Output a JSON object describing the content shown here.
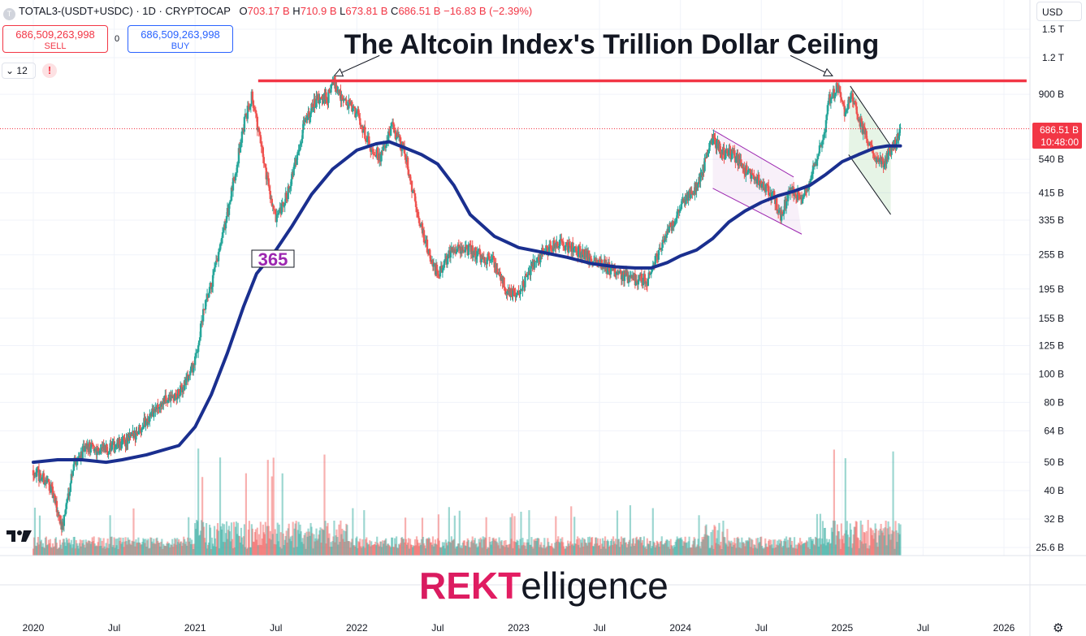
{
  "header": {
    "symbol": "TOTAL3-(USDT+USDC) · 1D · CRYPTOCAP",
    "o_label": "O",
    "o": "703.17 B",
    "h_label": "H",
    "h": "710.9 B",
    "l_label": "L",
    "l": "673.81 B",
    "c_label": "C",
    "c": "686.51 B",
    "change": "−16.83 B (−2.39%)"
  },
  "trade": {
    "sell_price": "686,509,263,998",
    "sell_label": "SELL",
    "spread": "0",
    "buy_price": "686,509,263,998",
    "buy_label": "BUY"
  },
  "indicator_count": "12",
  "warning_glyph": "!",
  "currency": "USD",
  "icons": [
    "symbol-icon",
    "chevron-down-icon",
    "warning-icon",
    "gear-icon",
    "tradingview-logo-icon"
  ],
  "colors": {
    "up": "#26a69a",
    "down": "#ef5350",
    "ma": "#1a2f8f",
    "ceiling": "#f23645",
    "price_tag": "#f23645",
    "channel": "#9c27b0",
    "wedge_fill": "#dff3df",
    "logo_pink": "#e91e63"
  },
  "chart_data": {
    "type": "candlestick",
    "title": "The Altcoin Index's Trillion Dollar Ceiling",
    "watermark": {
      "prefix": "REKT",
      "suffix": "elligence"
    },
    "scale": "log",
    "y_ticks": [
      "1.5 T",
      "1.2 T",
      "900 B",
      "540 B",
      "415 B",
      "335 B",
      "255 B",
      "195 B",
      "155 B",
      "125 B",
      "100 B",
      "80 B",
      "64 B",
      "50 B",
      "40 B",
      "32 B",
      "25.6 B"
    ],
    "y_tick_values": [
      1500,
      1200,
      900,
      540,
      415,
      335,
      255,
      195,
      155,
      125,
      100,
      80,
      64,
      50,
      40,
      32,
      25.6
    ],
    "x_ticks": [
      "2020",
      "Jul",
      "2021",
      "Jul",
      "2022",
      "Jul",
      "2023",
      "Jul",
      "2024",
      "Jul",
      "2025",
      "Jul",
      "2026"
    ],
    "x_tick_dates": [
      2020.0,
      2020.5,
      2021.0,
      2021.5,
      2022.0,
      2022.5,
      2023.0,
      2023.5,
      2024.0,
      2024.5,
      2025.0,
      2025.5,
      2026.0
    ],
    "last_price": "686.51 B",
    "countdown": "10:48:00",
    "ma_label": "365",
    "ma_period": 365,
    "ceiling_value": 1000,
    "ceiling_range": [
      2021.39,
      2026.14
    ],
    "price_path": [
      [
        2020.0,
        47
      ],
      [
        2020.1,
        42
      ],
      [
        2020.18,
        30
      ],
      [
        2020.25,
        50
      ],
      [
        2020.33,
        56
      ],
      [
        2020.45,
        55
      ],
      [
        2020.6,
        60
      ],
      [
        2020.7,
        70
      ],
      [
        2020.8,
        80
      ],
      [
        2020.9,
        85
      ],
      [
        2021.0,
        110
      ],
      [
        2021.05,
        160
      ],
      [
        2021.1,
        200
      ],
      [
        2021.15,
        260
      ],
      [
        2021.22,
        400
      ],
      [
        2021.3,
        700
      ],
      [
        2021.35,
        900
      ],
      [
        2021.42,
        550
      ],
      [
        2021.5,
        330
      ],
      [
        2021.55,
        380
      ],
      [
        2021.62,
        520
      ],
      [
        2021.68,
        750
      ],
      [
        2021.75,
        850
      ],
      [
        2021.82,
        880
      ],
      [
        2021.86,
        1000
      ],
      [
        2021.92,
        850
      ],
      [
        2022.0,
        780
      ],
      [
        2022.08,
        600
      ],
      [
        2022.15,
        550
      ],
      [
        2022.22,
        700
      ],
      [
        2022.3,
        560
      ],
      [
        2022.37,
        360
      ],
      [
        2022.45,
        250
      ],
      [
        2022.5,
        220
      ],
      [
        2022.6,
        270
      ],
      [
        2022.7,
        265
      ],
      [
        2022.78,
        250
      ],
      [
        2022.85,
        240
      ],
      [
        2022.92,
        195
      ],
      [
        2023.0,
        185
      ],
      [
        2023.08,
        230
      ],
      [
        2023.15,
        260
      ],
      [
        2023.25,
        280
      ],
      [
        2023.32,
        270
      ],
      [
        2023.42,
        255
      ],
      [
        2023.5,
        240
      ],
      [
        2023.62,
        220
      ],
      [
        2023.72,
        210
      ],
      [
        2023.8,
        210
      ],
      [
        2023.85,
        250
      ],
      [
        2023.9,
        290
      ],
      [
        2023.97,
        340
      ],
      [
        2024.02,
        390
      ],
      [
        2024.08,
        420
      ],
      [
        2024.13,
        480
      ],
      [
        2024.2,
        650
      ],
      [
        2024.25,
        570
      ],
      [
        2024.33,
        560
      ],
      [
        2024.42,
        480
      ],
      [
        2024.5,
        450
      ],
      [
        2024.58,
        400
      ],
      [
        2024.62,
        345
      ],
      [
        2024.68,
        420
      ],
      [
        2024.75,
        400
      ],
      [
        2024.8,
        460
      ],
      [
        2024.88,
        620
      ],
      [
        2024.92,
        860
      ],
      [
        2024.97,
        950
      ],
      [
        2025.02,
        780
      ],
      [
        2025.05,
        900
      ],
      [
        2025.1,
        750
      ],
      [
        2025.15,
        640
      ],
      [
        2025.2,
        560
      ],
      [
        2025.25,
        520
      ],
      [
        2025.28,
        560
      ],
      [
        2025.33,
        620
      ],
      [
        2025.36,
        686.51
      ]
    ],
    "ma_path": [
      [
        2020.0,
        50
      ],
      [
        2020.15,
        51
      ],
      [
        2020.3,
        51
      ],
      [
        2020.45,
        50
      ],
      [
        2020.55,
        51
      ],
      [
        2020.7,
        53
      ],
      [
        2020.9,
        57
      ],
      [
        2021.0,
        66
      ],
      [
        2021.1,
        85
      ],
      [
        2021.2,
        118
      ],
      [
        2021.3,
        170
      ],
      [
        2021.38,
        220
      ],
      [
        2021.5,
        265
      ],
      [
        2021.6,
        320
      ],
      [
        2021.72,
        410
      ],
      [
        2021.85,
        500
      ],
      [
        2022.0,
        580
      ],
      [
        2022.12,
        610
      ],
      [
        2022.2,
        620
      ],
      [
        2022.3,
        590
      ],
      [
        2022.4,
        560
      ],
      [
        2022.5,
        520
      ],
      [
        2022.6,
        440
      ],
      [
        2022.7,
        350
      ],
      [
        2022.85,
        295
      ],
      [
        2023.0,
        270
      ],
      [
        2023.15,
        260
      ],
      [
        2023.3,
        250
      ],
      [
        2023.45,
        238
      ],
      [
        2023.6,
        232
      ],
      [
        2023.72,
        230
      ],
      [
        2023.82,
        230
      ],
      [
        2023.92,
        240
      ],
      [
        2024.0,
        253
      ],
      [
        2024.1,
        265
      ],
      [
        2024.2,
        290
      ],
      [
        2024.3,
        330
      ],
      [
        2024.4,
        360
      ],
      [
        2024.5,
        385
      ],
      [
        2024.6,
        405
      ],
      [
        2024.7,
        420
      ],
      [
        2024.8,
        440
      ],
      [
        2024.9,
        480
      ],
      [
        2025.0,
        530
      ],
      [
        2025.1,
        560
      ],
      [
        2025.2,
        590
      ],
      [
        2025.28,
        600
      ],
      [
        2025.36,
        600
      ]
    ],
    "annotations": {
      "arrow_1": {
        "from": [
          2022.14,
          1220
        ],
        "to": [
          2021.86,
          1040
        ]
      },
      "arrow_2": {
        "from": [
          2024.68,
          1220
        ],
        "to": [
          2024.94,
          1040
        ]
      },
      "channel_upper": [
        [
          2024.2,
          680
        ],
        [
          2024.7,
          470
        ]
      ],
      "channel_lower": [
        [
          2024.2,
          430
        ],
        [
          2024.75,
          300
        ]
      ],
      "wedge_upper": [
        [
          2025.05,
          960
        ],
        [
          2025.3,
          600
        ]
      ],
      "wedge_lower": [
        [
          2025.04,
          560
        ],
        [
          2025.3,
          350
        ]
      ]
    }
  }
}
